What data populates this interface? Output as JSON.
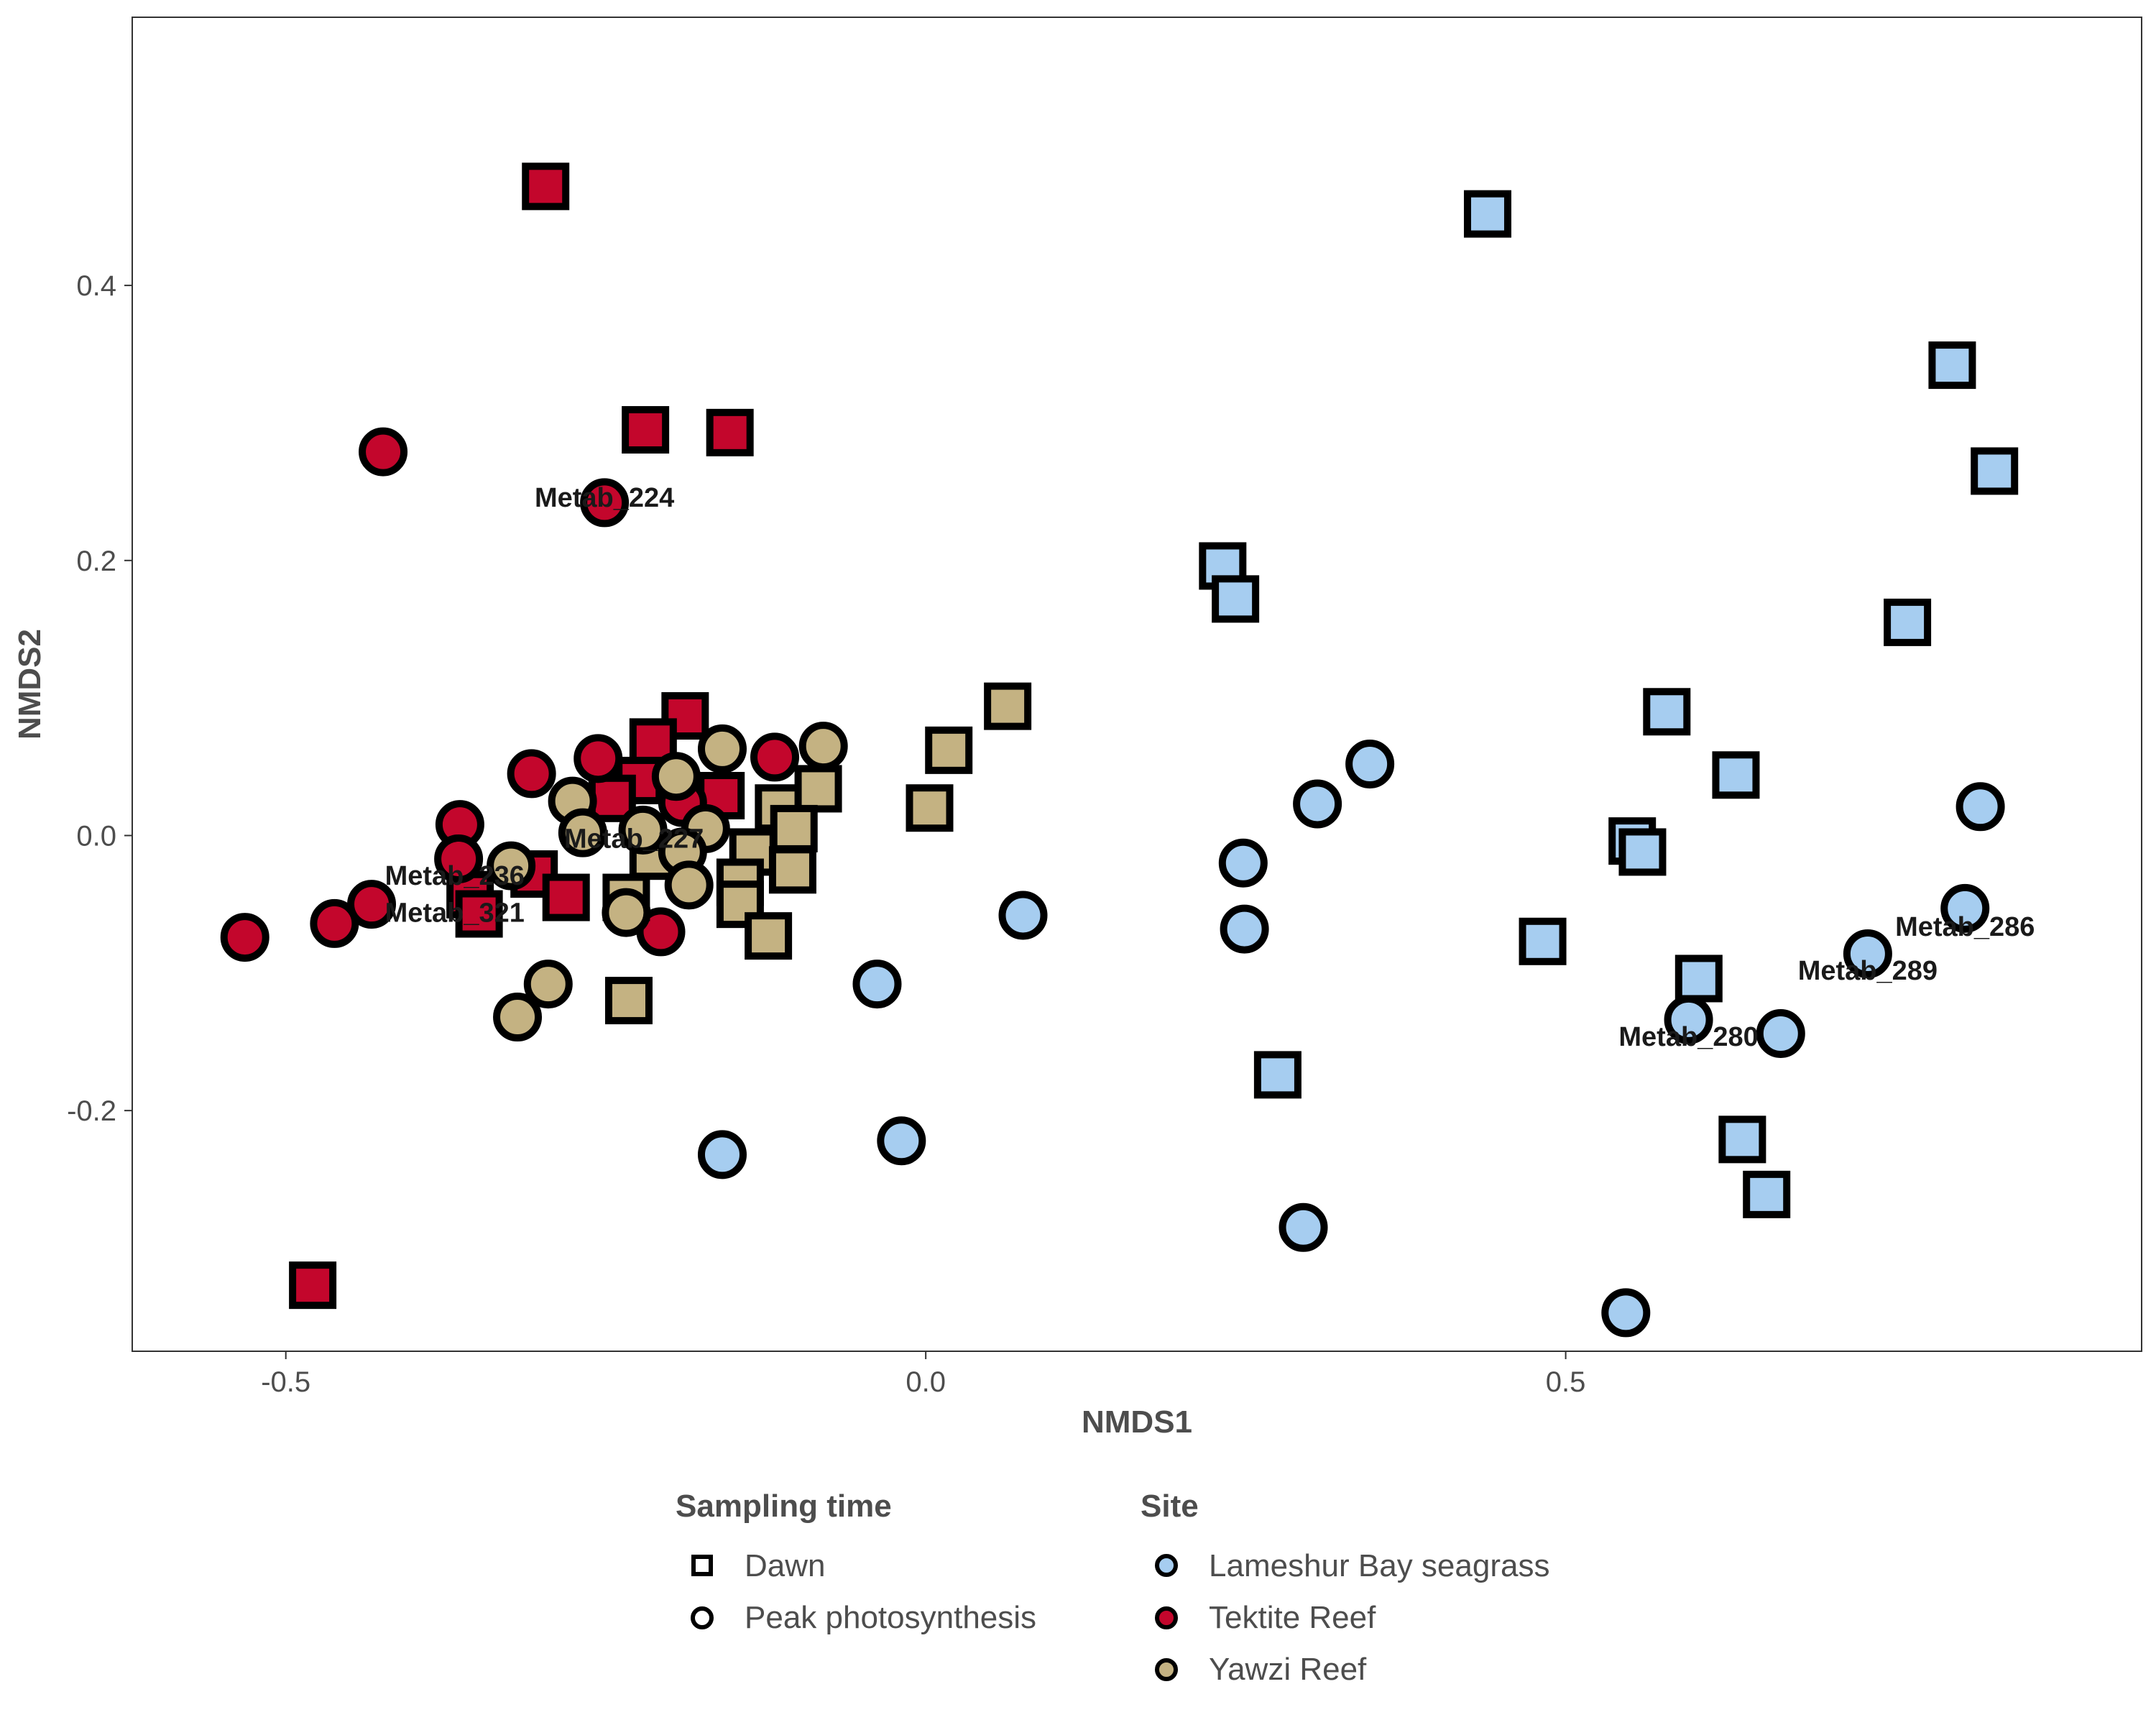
{
  "chart_data": {
    "type": "scatter",
    "title": "",
    "xlabel": "NMDS1",
    "ylabel": "NMDS2",
    "xlim": [
      -0.62,
      0.95
    ],
    "ylim": [
      -0.375,
      0.595
    ],
    "x_ticks": [
      -0.5,
      0.0,
      0.5
    ],
    "x_tick_labels": [
      "-0.5",
      "0.0",
      "0.5"
    ],
    "y_ticks": [
      -0.2,
      0.0,
      0.2,
      0.4
    ],
    "y_tick_labels": [
      "-0.2",
      "0.0",
      "0.2",
      "0.4"
    ],
    "grid": false,
    "legend_position": "bottom",
    "shape_legend": {
      "title": "Sampling time",
      "entries": [
        {
          "label": "Dawn",
          "shape": "square"
        },
        {
          "label": "Peak photosynthesis",
          "shape": "circle"
        }
      ]
    },
    "color_legend": {
      "title": "Site",
      "entries": [
        {
          "label": "Lameshur Bay seagrass",
          "color": "#a6cdf0"
        },
        {
          "label": "Tektite Reef",
          "color": "#c3062c"
        },
        {
          "label": "Yawzi Reef",
          "color": "#c4b282"
        }
      ]
    },
    "series": [
      {
        "site": "Lameshur Bay seagrass",
        "sampling_time": "Dawn",
        "color": "#a6cdf0",
        "shape": "square",
        "points": [
          [
            0.439,
            0.452
          ],
          [
            0.802,
            0.342
          ],
          [
            0.835,
            0.265
          ],
          [
            0.767,
            0.155
          ],
          [
            0.232,
            0.196
          ],
          [
            0.242,
            0.172
          ],
          [
            0.579,
            0.09
          ],
          [
            0.633,
            0.044
          ],
          [
            0.552,
            -0.004
          ],
          [
            0.56,
            -0.012
          ],
          [
            0.482,
            -0.077
          ],
          [
            0.604,
            -0.104
          ],
          [
            0.275,
            -0.174
          ],
          [
            0.638,
            -0.221
          ],
          [
            0.657,
            -0.261
          ]
        ]
      },
      {
        "site": "Lameshur Bay seagrass",
        "sampling_time": "Peak photosynthesis",
        "color": "#a6cdf0",
        "shape": "circle",
        "points": [
          [
            0.347,
            0.052
          ],
          [
            0.306,
            0.023
          ],
          [
            0.248,
            -0.02
          ],
          [
            0.249,
            -0.068
          ],
          [
            0.076,
            -0.058
          ],
          [
            -0.038,
            -0.108
          ],
          [
            -0.019,
            -0.222
          ],
          [
            -0.159,
            -0.232
          ],
          [
            0.295,
            -0.285
          ],
          [
            0.547,
            -0.347
          ],
          [
            0.824,
            0.021
          ],
          [
            0.812,
            -0.053
          ],
          [
            0.736,
            -0.086
          ],
          [
            0.668,
            -0.144
          ],
          [
            0.596,
            -0.134
          ]
        ]
      },
      {
        "site": "Tektite Reef",
        "sampling_time": "Dawn",
        "color": "#c3062c",
        "shape": "square",
        "points": [
          [
            -0.297,
            0.472
          ],
          [
            -0.219,
            0.295
          ],
          [
            -0.153,
            0.293
          ],
          [
            -0.479,
            -0.327
          ],
          [
            -0.188,
            0.087
          ],
          [
            -0.213,
            0.068
          ],
          [
            -0.224,
            0.04
          ],
          [
            -0.245,
            0.027
          ],
          [
            -0.16,
            0.029
          ],
          [
            -0.306,
            -0.028
          ],
          [
            -0.281,
            -0.045
          ],
          [
            -0.356,
            -0.043
          ],
          [
            -0.349,
            -0.057
          ]
        ]
      },
      {
        "site": "Tektite Reef",
        "sampling_time": "Peak photosynthesis",
        "color": "#c3062c",
        "shape": "circle",
        "points": [
          [
            -0.424,
            0.279
          ],
          [
            -0.251,
            0.242
          ],
          [
            -0.308,
            0.045
          ],
          [
            -0.256,
            0.056
          ],
          [
            -0.118,
            0.057
          ],
          [
            -0.364,
            0.008
          ],
          [
            -0.365,
            -0.017
          ],
          [
            -0.19,
            0.024
          ],
          [
            -0.433,
            -0.05
          ],
          [
            -0.462,
            -0.064
          ],
          [
            -0.532,
            -0.074
          ],
          [
            -0.207,
            -0.07
          ]
        ]
      },
      {
        "site": "Yawzi Reef",
        "sampling_time": "Dawn",
        "color": "#c4b282",
        "shape": "square",
        "points": [
          [
            0.064,
            0.094
          ],
          [
            0.018,
            0.062
          ],
          [
            0.003,
            0.02
          ],
          [
            -0.115,
            0.02
          ],
          [
            -0.084,
            0.034
          ],
          [
            -0.103,
            0.005
          ],
          [
            -0.135,
            -0.012
          ],
          [
            -0.104,
            -0.025
          ],
          [
            -0.145,
            -0.034
          ],
          [
            -0.145,
            -0.05
          ],
          [
            -0.123,
            -0.073
          ],
          [
            -0.232,
            -0.12
          ],
          [
            -0.213,
            -0.015
          ],
          [
            -0.234,
            -0.045
          ]
        ]
      },
      {
        "site": "Yawzi Reef",
        "sampling_time": "Peak photosynthesis",
        "color": "#c4b282",
        "shape": "circle",
        "points": [
          [
            -0.08,
            0.065
          ],
          [
            -0.159,
            0.063
          ],
          [
            -0.195,
            0.043
          ],
          [
            -0.276,
            0.025
          ],
          [
            -0.268,
            0.002
          ],
          [
            -0.221,
            0.004
          ],
          [
            -0.172,
            0.005
          ],
          [
            -0.19,
            -0.012
          ],
          [
            -0.185,
            -0.036
          ],
          [
            -0.324,
            -0.022
          ],
          [
            -0.295,
            -0.108
          ],
          [
            -0.319,
            -0.132
          ],
          [
            -0.234,
            -0.056
          ]
        ]
      }
    ],
    "annotations": [
      {
        "text": "Metab_224",
        "x": -0.251,
        "y": 0.246
      },
      {
        "text": "Metab_227",
        "x": -0.228,
        "y": -0.002
      },
      {
        "text": "Metab_236",
        "x": -0.368,
        "y": -0.029
      },
      {
        "text": "Metab_321",
        "x": -0.368,
        "y": -0.056
      },
      {
        "text": "Metab_286",
        "x": 0.812,
        "y": -0.066
      },
      {
        "text": "Metab_289",
        "x": 0.736,
        "y": -0.098
      },
      {
        "text": "Metab_280",
        "x": 0.596,
        "y": -0.146
      }
    ]
  }
}
